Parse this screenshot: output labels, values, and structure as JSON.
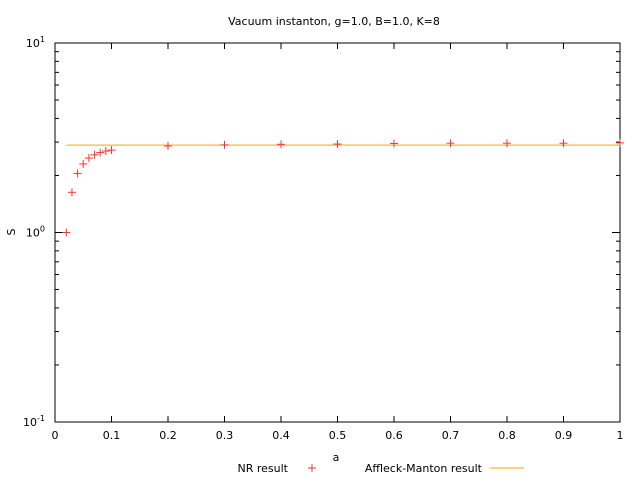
{
  "chart_data": {
    "type": "scatter",
    "title": "Vacuum instanton, g=1.0, B=1.0, K=8",
    "xlabel": "a",
    "ylabel": "S",
    "xlim": [
      0,
      1
    ],
    "ylim": [
      0.1,
      10
    ],
    "yscale": "log",
    "grid": false,
    "legend_position": "bottom",
    "x_ticks": [
      "0",
      "0.1",
      "0.2",
      "0.3",
      "0.4",
      "0.5",
      "0.6",
      "0.7",
      "0.8",
      "0.9",
      "1"
    ],
    "x_tick_values": [
      0,
      0.1,
      0.2,
      0.3,
      0.4,
      0.5,
      0.6,
      0.7,
      0.8,
      0.9,
      1
    ],
    "y_ticks": [
      {
        "value": 0.1,
        "base": "10",
        "exp": "-1"
      },
      {
        "value": 1,
        "base": "10",
        "exp": "0"
      },
      {
        "value": 10,
        "base": "10",
        "exp": "1"
      }
    ],
    "series": [
      {
        "name": "NR result",
        "kind": "points",
        "marker": "+",
        "color": "#ff3333",
        "x": [
          0.02,
          0.03,
          0.04,
          0.05,
          0.06,
          0.07,
          0.08,
          0.09,
          0.1,
          0.2,
          0.3,
          0.4,
          0.5,
          0.6,
          0.7,
          0.8,
          0.9,
          1.0
        ],
        "y": [
          1.0,
          1.63,
          2.05,
          2.3,
          2.47,
          2.57,
          2.64,
          2.69,
          2.72,
          2.86,
          2.9,
          2.92,
          2.93,
          2.95,
          2.96,
          2.96,
          2.96,
          2.97
        ]
      },
      {
        "name": "Affleck-Manton result",
        "kind": "line",
        "color": "#ffb733",
        "x": [
          0.02,
          1.0
        ],
        "y": [
          2.89,
          2.89
        ]
      }
    ]
  }
}
